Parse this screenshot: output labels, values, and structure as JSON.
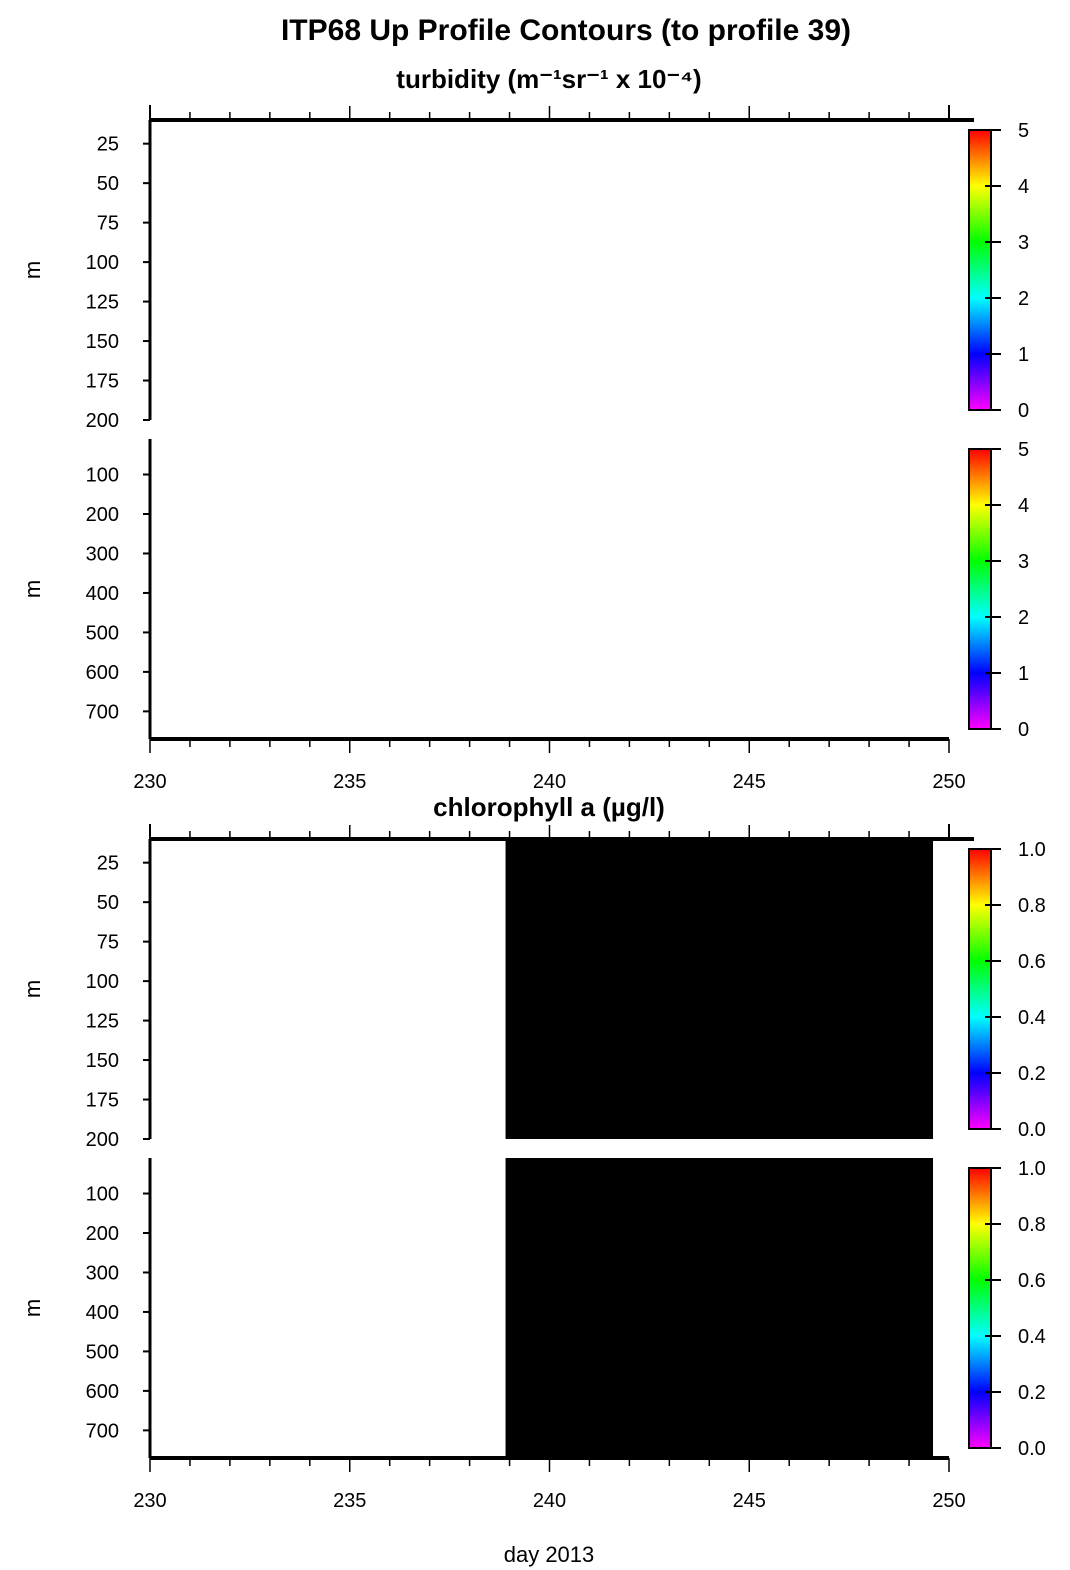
{
  "figure": {
    "title": "ITP68 Up Profile Contours (to profile 39)",
    "x_axis_label": "day 2013"
  },
  "chart_data": [
    {
      "type": "heatmap",
      "title": "turbidity (m⁻¹sr⁻¹ x 10⁻⁴)",
      "panels": [
        {
          "ylabel": "m",
          "yticks": [
            25,
            50,
            75,
            100,
            125,
            150,
            175,
            200
          ],
          "ylim": [
            10,
            200
          ],
          "inverted_y": true,
          "data_extent_x": null
        },
        {
          "ylabel": "m",
          "yticks": [
            100,
            200,
            300,
            400,
            500,
            600,
            700
          ],
          "ylim": [
            10,
            770
          ],
          "inverted_y": true,
          "data_extent_x": null
        }
      ],
      "xlim": [
        230,
        250
      ],
      "xticks": [
        230,
        235,
        240,
        245,
        250
      ],
      "colorbar": {
        "min": 0,
        "max": 5,
        "ticks": [
          "0",
          "1",
          "2",
          "3",
          "4",
          "5"
        ]
      },
      "fill_color": "#000000",
      "grid": false
    },
    {
      "type": "heatmap",
      "title": "chlorophyll a (µg/l)",
      "panels": [
        {
          "ylabel": "m",
          "yticks": [
            25,
            50,
            75,
            100,
            125,
            150,
            175,
            200
          ],
          "ylim": [
            10,
            200
          ],
          "inverted_y": true,
          "data_extent_x": [
            238.9,
            249.6
          ]
        },
        {
          "ylabel": "m",
          "yticks": [
            100,
            200,
            300,
            400,
            500,
            600,
            700
          ],
          "ylim": [
            10,
            770
          ],
          "inverted_y": true,
          "data_extent_x": [
            238.9,
            249.6
          ]
        }
      ],
      "xlim": [
        230,
        250
      ],
      "xticks": [
        230,
        235,
        240,
        245,
        250
      ],
      "colorbar": {
        "min": 0,
        "max": 1,
        "ticks": [
          "0.0",
          "0.2",
          "0.4",
          "0.6",
          "0.8",
          "1.0"
        ]
      },
      "fill_color": "#000000",
      "grid": false
    }
  ]
}
